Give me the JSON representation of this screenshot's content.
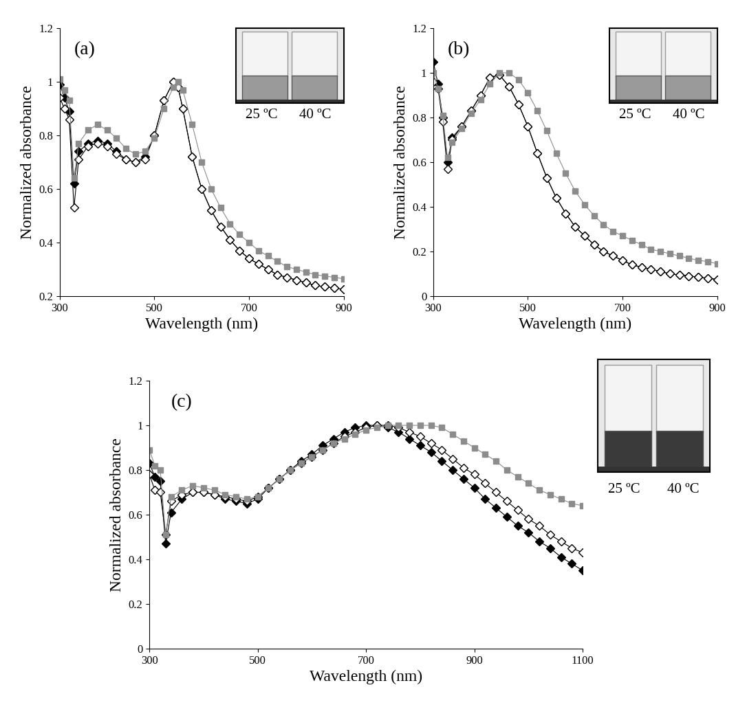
{
  "chart_data": [
    {
      "type": "line",
      "title": "(a)",
      "x_label": "Wavelength (nm)",
      "y_label": "Normalized absorbance",
      "annotations": [
        "25 ºC",
        "40 ºC"
      ],
      "x": [
        300,
        310,
        320,
        330,
        340,
        360,
        380,
        400,
        420,
        440,
        460,
        480,
        500,
        520,
        540,
        550,
        560,
        580,
        600,
        620,
        640,
        660,
        680,
        700,
        720,
        740,
        760,
        780,
        800,
        820,
        840,
        860,
        880,
        900
      ],
      "xlim": [
        300,
        900
      ],
      "xticks": [
        300,
        500,
        700,
        900
      ],
      "ylim": [
        0.2,
        1.2
      ],
      "yticks": [
        0.2,
        0.4,
        0.6,
        0.8,
        1,
        1.2
      ],
      "series": [
        {
          "color": "#000000",
          "marker": "diamond",
          "line_style": "solid",
          "values": [
            0.99,
            0.94,
            0.89,
            0.62,
            0.74,
            0.77,
            0.78,
            0.77,
            0.74,
            0.71,
            0.7,
            0.72,
            0.8,
            0.93,
            1.0,
            0.98,
            0.9,
            0.72,
            0.6,
            0.52,
            0.46,
            0.41,
            0.37,
            0.34,
            0.32,
            0.3,
            0.28,
            0.27,
            0.26,
            0.25,
            0.24,
            0.235,
            0.23,
            0.225
          ]
        },
        {
          "color": "#000000",
          "marker": "open_diamond",
          "line_style": "solid",
          "values": [
            0.94,
            0.9,
            0.86,
            0.53,
            0.71,
            0.76,
            0.77,
            0.76,
            0.73,
            0.71,
            0.7,
            0.71,
            0.8,
            0.93,
            1.0,
            0.98,
            0.9,
            0.72,
            0.6,
            0.52,
            0.46,
            0.41,
            0.37,
            0.34,
            0.32,
            0.3,
            0.28,
            0.27,
            0.26,
            0.25,
            0.24,
            0.235,
            0.23,
            0.225
          ]
        },
        {
          "color": "#8c8c8c",
          "marker": "square",
          "line_style": "solid",
          "values": [
            1.01,
            0.97,
            0.93,
            0.64,
            0.77,
            0.82,
            0.84,
            0.82,
            0.79,
            0.75,
            0.73,
            0.74,
            0.79,
            0.9,
            0.98,
            1.0,
            0.97,
            0.84,
            0.7,
            0.6,
            0.53,
            0.47,
            0.43,
            0.4,
            0.37,
            0.35,
            0.33,
            0.31,
            0.3,
            0.29,
            0.28,
            0.275,
            0.27,
            0.265
          ]
        }
      ]
    },
    {
      "type": "line",
      "title": "(b)",
      "x_label": "Wavelength (nm)",
      "y_label": "Normalized absorbance",
      "annotations": [
        "25 ºC",
        "40 ºC"
      ],
      "x": [
        300,
        310,
        320,
        330,
        340,
        360,
        380,
        400,
        420,
        440,
        460,
        480,
        500,
        520,
        540,
        560,
        580,
        600,
        620,
        640,
        660,
        680,
        700,
        720,
        740,
        760,
        780,
        800,
        820,
        840,
        860,
        880,
        900
      ],
      "xlim": [
        300,
        900
      ],
      "xticks": [
        300,
        500,
        700,
        900
      ],
      "ylim": [
        0,
        1.2
      ],
      "yticks": [
        0,
        0.2,
        0.4,
        0.6,
        0.8,
        1,
        1.2
      ],
      "series": [
        {
          "color": "#000000",
          "marker": "diamond",
          "line_style": "solid",
          "values": [
            1.05,
            0.95,
            0.8,
            0.6,
            0.71,
            0.76,
            0.83,
            0.9,
            0.98,
            0.99,
            0.94,
            0.86,
            0.76,
            0.64,
            0.53,
            0.44,
            0.37,
            0.31,
            0.27,
            0.23,
            0.2,
            0.18,
            0.16,
            0.14,
            0.13,
            0.12,
            0.11,
            0.1,
            0.095,
            0.09,
            0.085,
            0.08,
            0.075
          ]
        },
        {
          "color": "#000000",
          "marker": "open_diamond",
          "line_style": "solid",
          "values": [
            0.96,
            0.93,
            0.78,
            0.57,
            0.7,
            0.76,
            0.83,
            0.9,
            0.98,
            0.99,
            0.94,
            0.86,
            0.76,
            0.64,
            0.53,
            0.44,
            0.37,
            0.31,
            0.27,
            0.23,
            0.2,
            0.18,
            0.16,
            0.14,
            0.13,
            0.12,
            0.11,
            0.1,
            0.095,
            0.09,
            0.085,
            0.08,
            0.075
          ]
        },
        {
          "color": "#8c8c8c",
          "marker": "square",
          "line_style": "solid",
          "values": [
            1.0,
            0.93,
            0.81,
            0.62,
            0.69,
            0.75,
            0.82,
            0.88,
            0.95,
            1.0,
            1.0,
            0.97,
            0.91,
            0.83,
            0.74,
            0.64,
            0.55,
            0.47,
            0.41,
            0.36,
            0.32,
            0.29,
            0.27,
            0.25,
            0.23,
            0.21,
            0.2,
            0.19,
            0.18,
            0.17,
            0.16,
            0.155,
            0.145
          ]
        }
      ]
    },
    {
      "type": "line",
      "title": "(c)",
      "x_label": "Wavelength (nm)",
      "y_label": "Normalized absorbance",
      "annotations": [
        "25 ºC",
        "40 ºC"
      ],
      "x": [
        300,
        310,
        320,
        330,
        340,
        360,
        380,
        400,
        420,
        440,
        460,
        480,
        500,
        520,
        540,
        560,
        580,
        600,
        620,
        640,
        660,
        680,
        700,
        720,
        740,
        760,
        780,
        800,
        820,
        840,
        860,
        880,
        900,
        920,
        940,
        960,
        980,
        1000,
        1020,
        1040,
        1060,
        1080,
        1100
      ],
      "xlim": [
        300,
        1100
      ],
      "xticks": [
        300,
        500,
        700,
        900,
        1100
      ],
      "ylim": [
        0,
        1.2
      ],
      "yticks": [
        0,
        0.2,
        0.4,
        0.6,
        0.8,
        1,
        1.2
      ],
      "series": [
        {
          "color": "#000000",
          "marker": "diamond",
          "line_style": "solid",
          "values": [
            0.83,
            0.77,
            0.75,
            0.47,
            0.61,
            0.67,
            0.7,
            0.7,
            0.69,
            0.67,
            0.66,
            0.65,
            0.67,
            0.72,
            0.76,
            0.8,
            0.84,
            0.87,
            0.91,
            0.94,
            0.97,
            0.99,
            1.0,
            1.0,
            0.99,
            0.97,
            0.94,
            0.91,
            0.88,
            0.84,
            0.8,
            0.76,
            0.72,
            0.67,
            0.63,
            0.59,
            0.55,
            0.52,
            0.48,
            0.45,
            0.41,
            0.38,
            0.35
          ]
        },
        {
          "color": "#000000",
          "marker": "open_diamond",
          "line_style": "solid",
          "values": [
            0.78,
            0.71,
            0.7,
            0.51,
            0.66,
            0.69,
            0.7,
            0.7,
            0.69,
            0.68,
            0.67,
            0.66,
            0.68,
            0.72,
            0.76,
            0.8,
            0.83,
            0.86,
            0.89,
            0.92,
            0.95,
            0.97,
            0.99,
            1.0,
            1.0,
            0.99,
            0.97,
            0.95,
            0.92,
            0.89,
            0.85,
            0.81,
            0.78,
            0.74,
            0.7,
            0.66,
            0.62,
            0.58,
            0.55,
            0.51,
            0.48,
            0.45,
            0.43
          ]
        },
        {
          "color": "#8c8c8c",
          "marker": "square",
          "line_style": "solid",
          "values": [
            0.89,
            0.82,
            0.8,
            0.51,
            0.68,
            0.71,
            0.73,
            0.72,
            0.71,
            0.69,
            0.68,
            0.67,
            0.68,
            0.72,
            0.76,
            0.8,
            0.83,
            0.86,
            0.89,
            0.92,
            0.94,
            0.96,
            0.98,
            0.99,
            1.0,
            1.0,
            1.0,
            1.0,
            1.0,
            0.99,
            0.96,
            0.93,
            0.9,
            0.87,
            0.84,
            0.8,
            0.77,
            0.74,
            0.71,
            0.69,
            0.67,
            0.65,
            0.64
          ]
        }
      ]
    }
  ]
}
